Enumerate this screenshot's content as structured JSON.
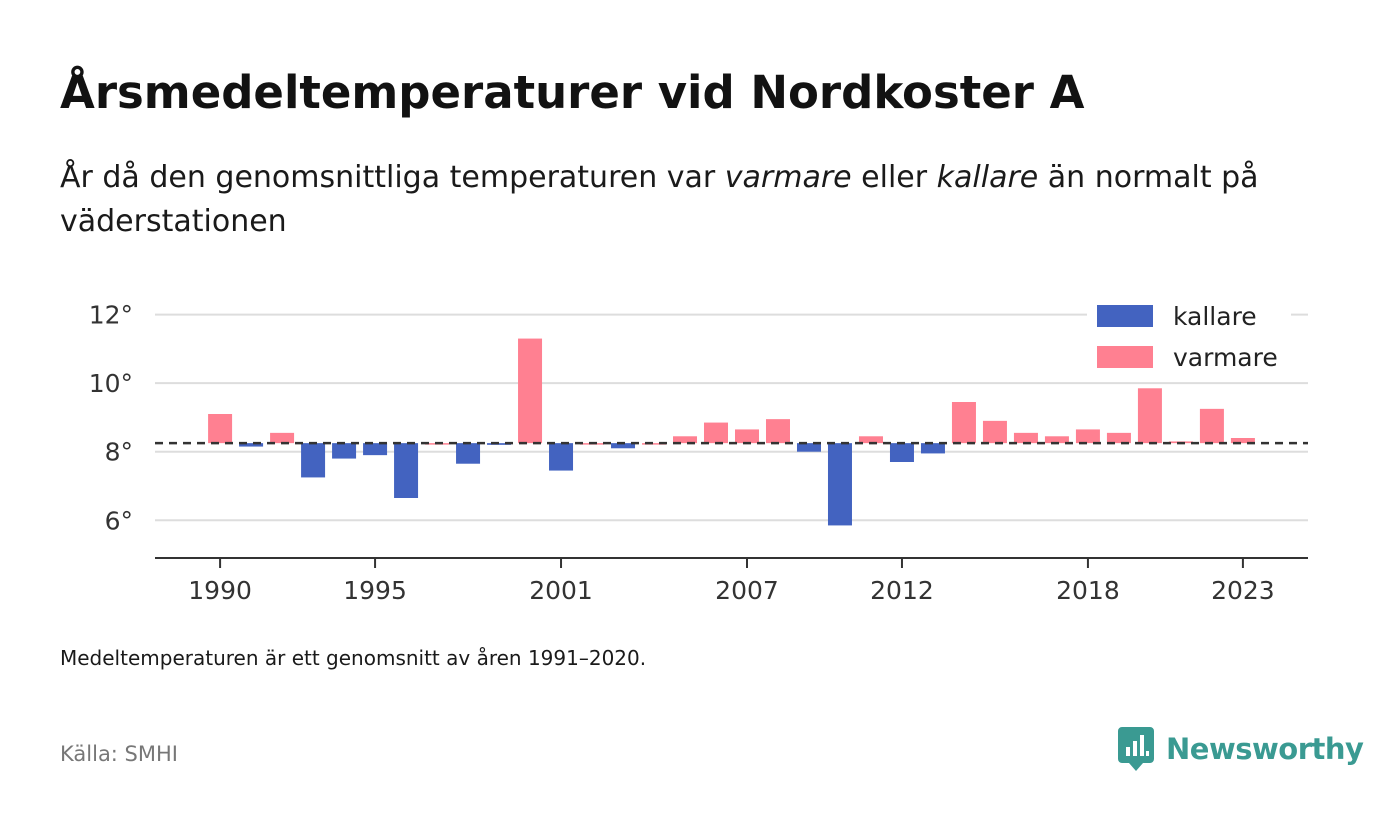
{
  "header": {
    "title": "Årsmedeltemperaturer vid Nordkoster A",
    "subtitle_part1": "År då den genomsnittliga temperaturen var ",
    "subtitle_em1": "varmare",
    "subtitle_part2": " eller ",
    "subtitle_em2": "kallare",
    "subtitle_part3": " än normalt på väderstationen"
  },
  "footer": {
    "note": "Medeltemperaturen är ett genomsnitt av åren 1991–2020.",
    "source": "Källa: SMHI",
    "brand": "Newsworthy"
  },
  "colors": {
    "kallare": "#4363c0",
    "varmare": "#ff8091",
    "reference_line": "#333333",
    "gridline": "#dddddd",
    "brand": "#3a9a92"
  },
  "chart_data": {
    "type": "bar",
    "baseline": 8.25,
    "ylim": [
      4.9,
      12.6
    ],
    "xlim": [
      1987.9,
      2025.1
    ],
    "yticks": [
      6,
      8,
      10,
      12
    ],
    "ytick_labels": [
      "6°",
      "8°",
      "10°",
      "12°"
    ],
    "xticks": [
      1990,
      1995,
      2001,
      2007,
      2012,
      2018,
      2023
    ],
    "xtick_labels": [
      "1990",
      "1995",
      "2001",
      "2007",
      "2012",
      "2018",
      "2023"
    ],
    "legend_position": "top-right",
    "legend": [
      {
        "key": "kallare",
        "label": "kallare"
      },
      {
        "key": "varmare",
        "label": "varmare"
      }
    ],
    "grid": true,
    "years": [
      1990,
      1991,
      1992,
      1993,
      1994,
      1995,
      1996,
      1997,
      1998,
      1999,
      2000,
      2001,
      2002,
      2003,
      2004,
      2005,
      2006,
      2007,
      2008,
      2009,
      2010,
      2011,
      2012,
      2013,
      2014,
      2015,
      2016,
      2017,
      2018,
      2019,
      2020,
      2021,
      2022,
      2023
    ],
    "values": [
      9.1,
      8.15,
      8.55,
      7.25,
      7.8,
      7.9,
      6.65,
      8.25,
      7.65,
      8.2,
      11.3,
      7.45,
      8.25,
      8.1,
      8.25,
      8.45,
      8.85,
      8.65,
      8.95,
      8.0,
      5.85,
      8.45,
      7.7,
      7.95,
      9.45,
      8.9,
      8.55,
      8.45,
      8.65,
      8.55,
      9.85,
      8.3,
      9.25,
      8.4
    ]
  }
}
